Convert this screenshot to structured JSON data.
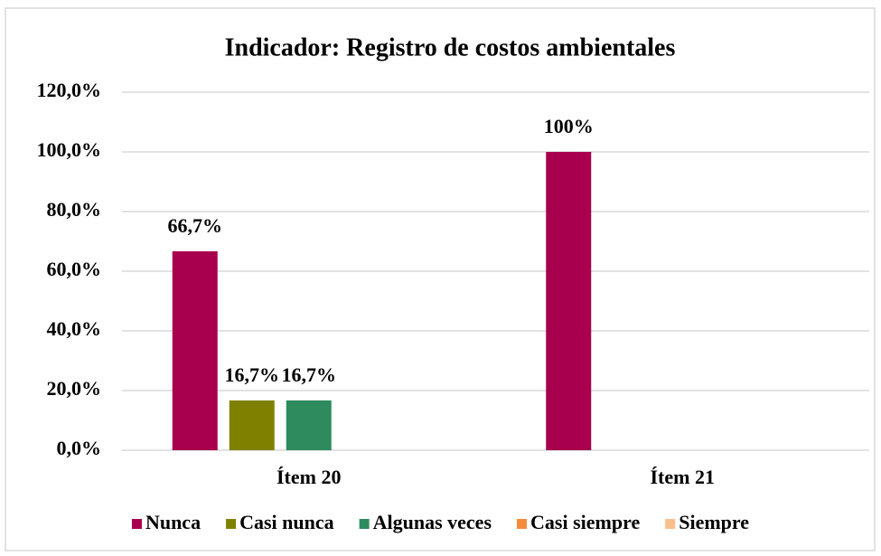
{
  "chart_data": {
    "type": "bar",
    "title": "Indicador: Registro de costos ambientales",
    "categories": [
      "Ítem 20",
      "Ítem 21"
    ],
    "series": [
      {
        "name": "Nunca",
        "color": "#a8004f",
        "values": [
          66.7,
          100
        ],
        "value_labels": [
          "66,7%",
          "100%"
        ]
      },
      {
        "name": "Casi nunca",
        "color": "#808000",
        "values": [
          16.7,
          0
        ],
        "value_labels": [
          "16,7%",
          null
        ]
      },
      {
        "name": "Algunas veces",
        "color": "#2e8b5e",
        "values": [
          16.7,
          0
        ],
        "value_labels": [
          "16,7%",
          null
        ]
      },
      {
        "name": "Casi siempre",
        "color": "#f58a3c",
        "values": [
          0,
          0
        ],
        "value_labels": [
          null,
          null
        ]
      },
      {
        "name": "Siempre",
        "color": "#f8bf8c",
        "values": [
          0,
          0
        ],
        "value_labels": [
          null,
          null
        ]
      }
    ],
    "ylim": [
      0,
      120
    ],
    "yticks": [
      {
        "value": 0,
        "label": "0,0%"
      },
      {
        "value": 20,
        "label": "20,0%"
      },
      {
        "value": 40,
        "label": "40,0%"
      },
      {
        "value": 60,
        "label": "60,0%"
      },
      {
        "value": 80,
        "label": "80,0%"
      },
      {
        "value": 100,
        "label": "100,0%"
      },
      {
        "value": 120,
        "label": "120,0%"
      }
    ],
    "grid": true,
    "legend": "bottom"
  }
}
